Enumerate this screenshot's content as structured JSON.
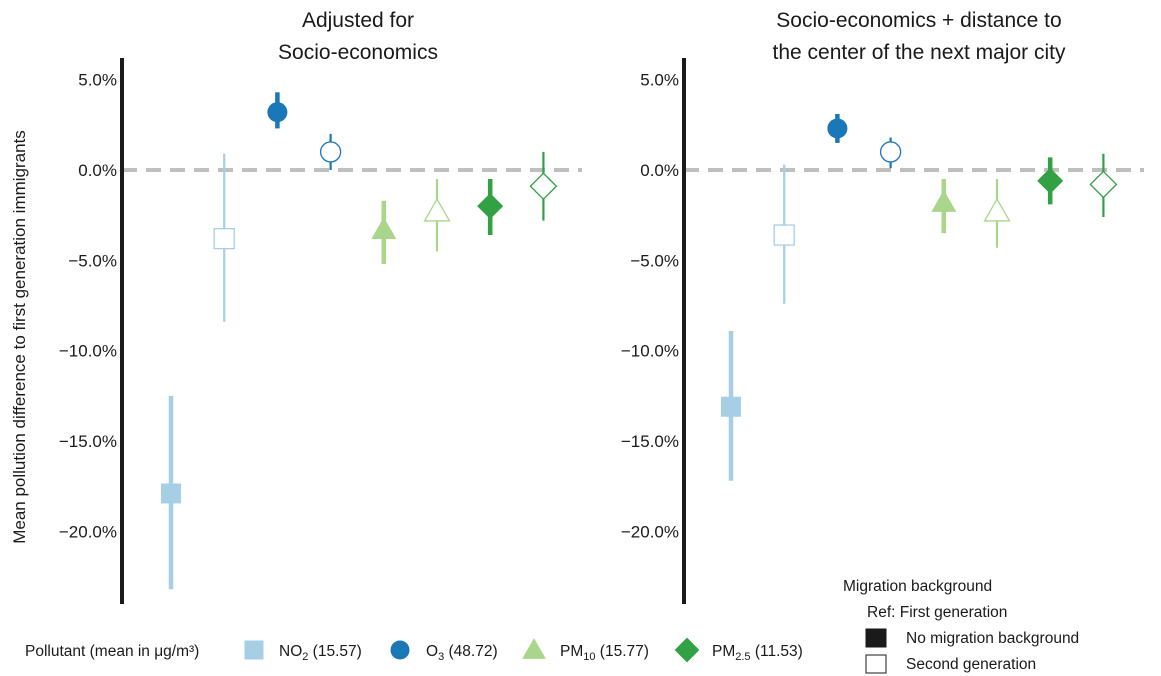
{
  "ylabel": "Mean pollution difference to first generation immigrants",
  "colors": {
    "NO2": "#a6cfe6",
    "O3": "#1a78b8",
    "PM10": "#a9d68a",
    "PM25": "#31a143",
    "axis": "#1a1a1a",
    "zero_line": "#bfbfbf"
  },
  "chart_data": [
    {
      "type": "scatter",
      "title": "Adjusted for\nSocio-economics",
      "ylim": [
        -24,
        6
      ],
      "yticks": [
        5,
        0,
        -5,
        -10,
        -15,
        -20
      ],
      "ytick_labels": [
        "5.0%",
        "0.0%",
        "−5.0%",
        "−10.0%",
        "−15.0%",
        "−20.0%"
      ],
      "points": [
        {
          "pollutant": "NO2",
          "group": "No migration background",
          "shape": "square",
          "filled": true,
          "value": -17.9,
          "low": -23.2,
          "high": -12.5
        },
        {
          "pollutant": "NO2",
          "group": "Second generation",
          "shape": "square",
          "filled": false,
          "value": -3.8,
          "low": -8.4,
          "high": 0.9
        },
        {
          "pollutant": "O3",
          "group": "No migration background",
          "shape": "circle",
          "filled": true,
          "value": 3.2,
          "low": 2.3,
          "high": 4.3
        },
        {
          "pollutant": "O3",
          "group": "Second generation",
          "shape": "circle",
          "filled": false,
          "value": 1.0,
          "low": 0.0,
          "high": 2.0
        },
        {
          "pollutant": "PM10",
          "group": "No migration background",
          "shape": "triangle",
          "filled": true,
          "value": -3.3,
          "low": -5.2,
          "high": -1.7
        },
        {
          "pollutant": "PM10",
          "group": "Second generation",
          "shape": "triangle",
          "filled": false,
          "value": -2.3,
          "low": -4.5,
          "high": -0.5
        },
        {
          "pollutant": "PM25",
          "group": "No migration background",
          "shape": "diamond",
          "filled": true,
          "value": -2.0,
          "low": -3.6,
          "high": -0.5
        },
        {
          "pollutant": "PM25",
          "group": "Second generation",
          "shape": "diamond",
          "filled": false,
          "value": -0.9,
          "low": -2.8,
          "high": 1.0
        }
      ]
    },
    {
      "type": "scatter",
      "title": "Socio-economics + distance to\nthe center of the next major city",
      "ylim": [
        -24,
        6
      ],
      "yticks": [
        5,
        0,
        -5,
        -10,
        -15,
        -20
      ],
      "ytick_labels": [
        "5.0%",
        "0.0%",
        "−5.0%",
        "−10.0%",
        "−15.0%",
        "−20.0%"
      ],
      "points": [
        {
          "pollutant": "NO2",
          "group": "No migration background",
          "shape": "square",
          "filled": true,
          "value": -13.1,
          "low": -17.2,
          "high": -8.9
        },
        {
          "pollutant": "NO2",
          "group": "Second generation",
          "shape": "square",
          "filled": false,
          "value": -3.6,
          "low": -7.4,
          "high": 0.3
        },
        {
          "pollutant": "O3",
          "group": "No migration background",
          "shape": "circle",
          "filled": true,
          "value": 2.3,
          "low": 1.5,
          "high": 3.1
        },
        {
          "pollutant": "O3",
          "group": "Second generation",
          "shape": "circle",
          "filled": false,
          "value": 1.0,
          "low": 0.1,
          "high": 1.8
        },
        {
          "pollutant": "PM10",
          "group": "No migration background",
          "shape": "triangle",
          "filled": true,
          "value": -1.8,
          "low": -3.5,
          "high": -0.5
        },
        {
          "pollutant": "PM10",
          "group": "Second generation",
          "shape": "triangle",
          "filled": false,
          "value": -2.3,
          "low": -4.3,
          "high": -0.5
        },
        {
          "pollutant": "PM25",
          "group": "No migration background",
          "shape": "diamond",
          "filled": true,
          "value": -0.6,
          "low": -1.9,
          "high": 0.7
        },
        {
          "pollutant": "PM25",
          "group": "Second generation",
          "shape": "diamond",
          "filled": false,
          "value": -0.8,
          "low": -2.6,
          "high": 0.9
        }
      ]
    }
  ],
  "legend_migration": {
    "title": "Migration background",
    "ref": "Ref: First generation",
    "items": [
      {
        "label": "No migration background",
        "filled": true
      },
      {
        "label": "Second generation",
        "filled": false
      }
    ]
  },
  "legend_pollutant": {
    "title": "Pollutant (mean in μg/m³)",
    "items": [
      {
        "key": "NO2",
        "shape": "square",
        "base": "NO",
        "sub": "2",
        "value": " (15.57)"
      },
      {
        "key": "O3",
        "shape": "circle",
        "base": "O",
        "sub": "3",
        "value": " (48.72)"
      },
      {
        "key": "PM10",
        "shape": "triangle",
        "base": "PM",
        "sub": "10",
        "value": " (15.77)"
      },
      {
        "key": "PM25",
        "shape": "diamond",
        "base": "PM",
        "sub": "2.5",
        "value": " (11.53)"
      }
    ]
  }
}
